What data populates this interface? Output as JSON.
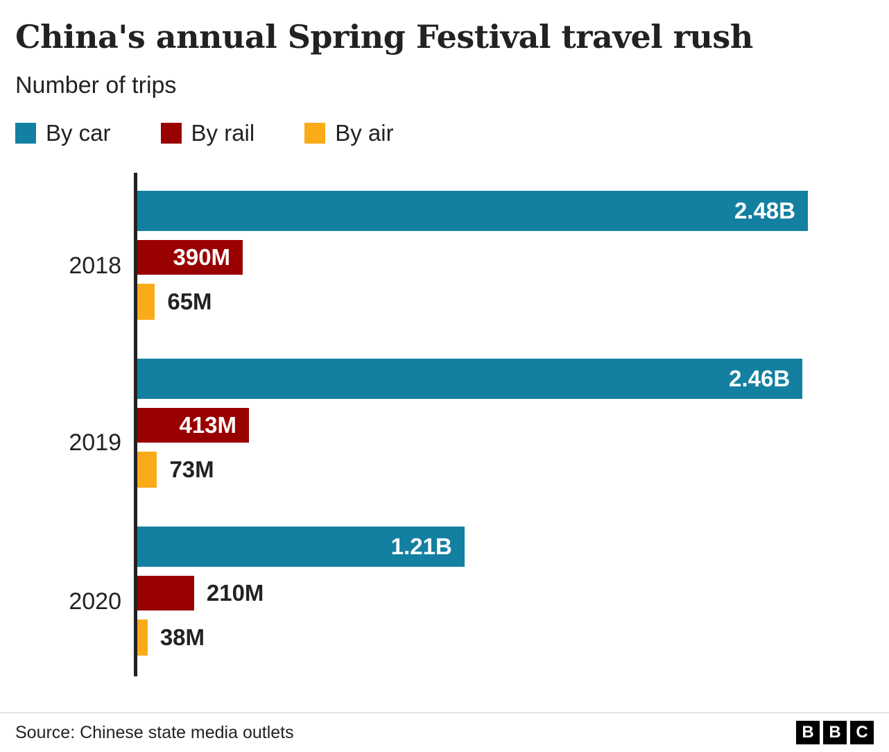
{
  "chart_data": {
    "type": "bar",
    "orientation": "horizontal",
    "title": "China's annual Spring Festival travel rush",
    "subtitle": "Number of trips",
    "categories": [
      "2018",
      "2019",
      "2020"
    ],
    "unit": "trips",
    "xmax_millions": 2480,
    "series": [
      {
        "name": "By car",
        "color": "#1380A1",
        "values_millions": [
          2480,
          2460,
          1210
        ],
        "labels": [
          "2.48B",
          "2.46B",
          "1.21B"
        ],
        "label_inside": [
          true,
          true,
          true
        ]
      },
      {
        "name": "By rail",
        "color": "#990000",
        "values_millions": [
          390,
          413,
          210
        ],
        "labels": [
          "390M",
          "413M",
          "210M"
        ],
        "label_inside": [
          true,
          true,
          false
        ]
      },
      {
        "name": "By air",
        "color": "#FAAB18",
        "values_millions": [
          65,
          73,
          38
        ],
        "labels": [
          "65M",
          "73M",
          "38M"
        ],
        "label_inside": [
          false,
          false,
          false
        ]
      }
    ],
    "legend_position": "top",
    "grid": false,
    "axis_color": "#222222"
  },
  "footer": {
    "source": "Source: Chinese state media outlets",
    "logo_letters": [
      "B",
      "B",
      "C"
    ]
  }
}
